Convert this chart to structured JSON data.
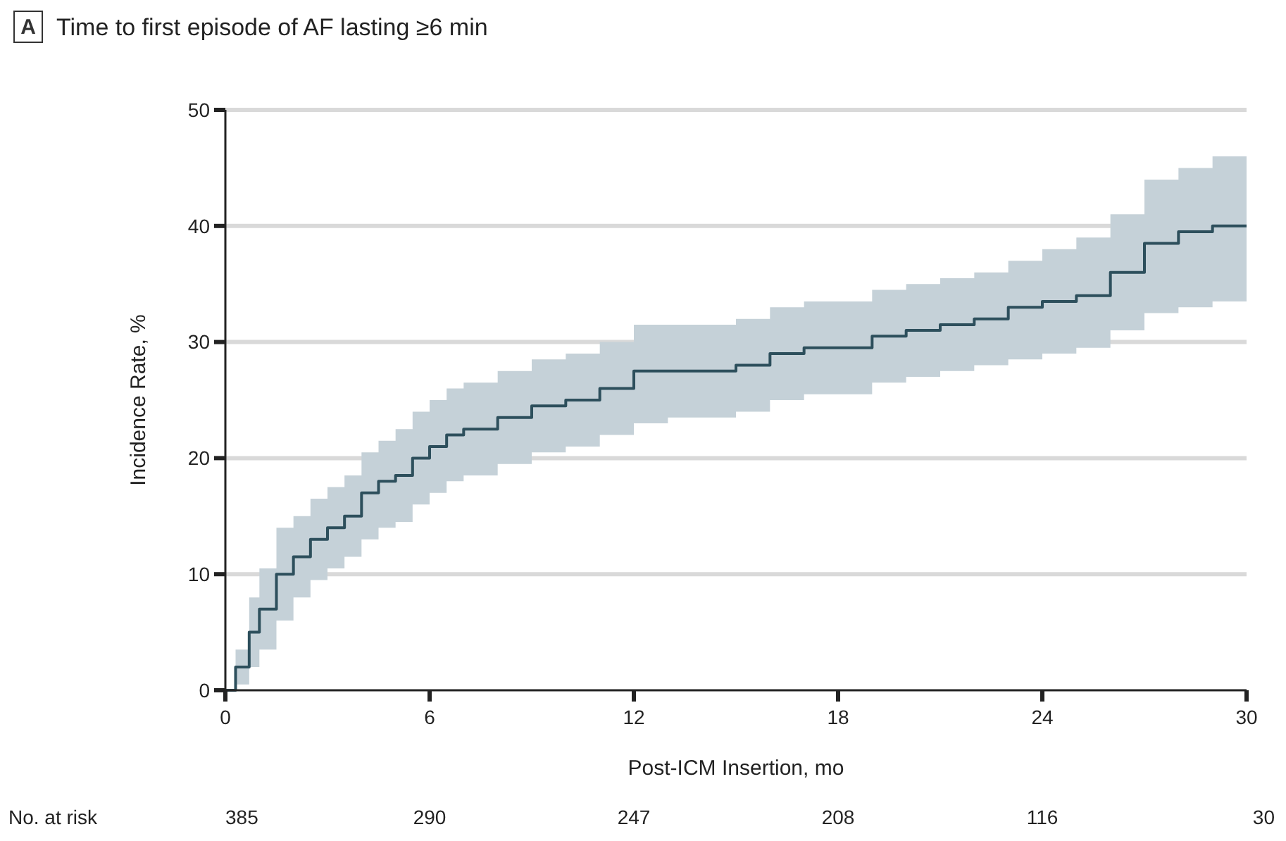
{
  "chart_data": {
    "type": "step",
    "title": "Time to first episode of AF lasting ≥6 min",
    "xlabel": "Post-ICM Insertion, mo",
    "ylabel": "Incidence Rate, %",
    "xlim": [
      0,
      30
    ],
    "xticks": [
      0,
      6,
      12,
      18,
      24,
      30
    ],
    "ylim": [
      0,
      50
    ],
    "yticks": [
      0,
      10,
      20,
      30,
      40,
      50
    ],
    "grid": "y",
    "annotations": [
      "A",
      "No. at risk",
      "385",
      "290",
      "247",
      "208",
      "116",
      "30"
    ],
    "series": [
      {
        "color": "#2d4f5c",
        "x": [
          0,
          0.3,
          0.7,
          1,
          1.5,
          2,
          2.5,
          3,
          3.5,
          4,
          4.5,
          5,
          5.5,
          6,
          6.5,
          7,
          8,
          9,
          10,
          11,
          12,
          13,
          15,
          16,
          17,
          18,
          19,
          20,
          21,
          22,
          23,
          24,
          25,
          26,
          27,
          28,
          29,
          30
        ],
        "values": [
          0,
          2,
          5,
          7,
          10,
          11.5,
          13,
          14,
          15,
          17,
          18,
          18.5,
          20,
          21,
          22,
          22.5,
          23.5,
          24.5,
          25,
          26,
          27.5,
          27.5,
          28,
          29,
          29.5,
          29.5,
          30.5,
          31,
          31.5,
          32,
          33,
          33.5,
          34,
          36,
          38.5,
          39.5,
          40,
          40
        ],
        "lower": [
          0,
          0.5,
          2,
          3.5,
          6,
          8,
          9.5,
          10.5,
          11.5,
          13,
          14,
          14.5,
          16,
          17,
          18,
          18.5,
          19.5,
          20.5,
          21,
          22,
          23,
          23.5,
          24,
          25,
          25.5,
          25.5,
          26.5,
          27,
          27.5,
          28,
          28.5,
          29,
          29.5,
          31,
          32.5,
          33,
          33.5,
          33.5
        ],
        "upper": [
          0,
          3.5,
          8,
          10.5,
          14,
          15,
          16.5,
          17.5,
          18.5,
          20.5,
          21.5,
          22.5,
          24,
          25,
          26,
          26.5,
          27.5,
          28.5,
          29,
          30,
          31.5,
          31.5,
          32,
          33,
          33.5,
          33.5,
          34.5,
          35,
          35.5,
          36,
          37,
          38,
          39,
          41,
          44,
          45,
          46,
          46
        ]
      }
    ]
  }
}
